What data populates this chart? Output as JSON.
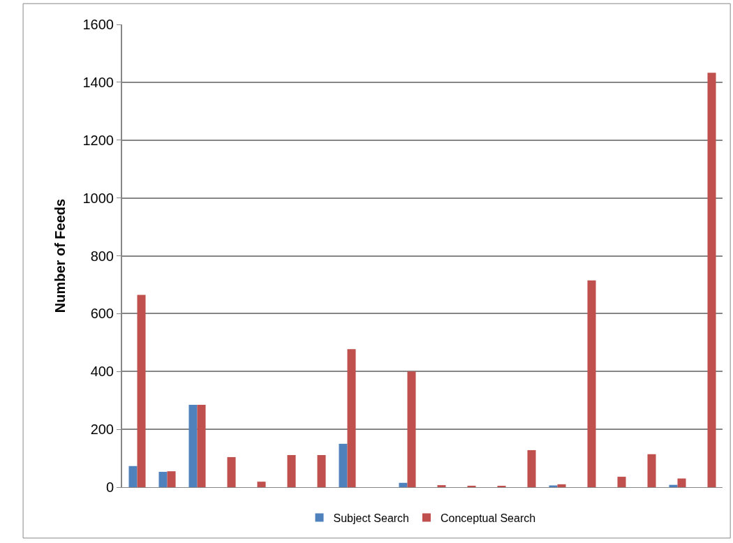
{
  "chart_data": {
    "type": "bar",
    "ylabel": "Number of Feeds",
    "categories": [
      null,
      null,
      null,
      null,
      null,
      null,
      null,
      null,
      null,
      null,
      null,
      null,
      null,
      null,
      null,
      null,
      null,
      null,
      null,
      null
    ],
    "series": [
      {
        "name": "Subject Search",
        "color": "#4f81bd",
        "values": [
          73,
          53,
          285,
          0,
          null,
          null,
          0,
          150,
          0,
          15,
          null,
          0,
          0,
          0,
          6,
          0,
          0,
          0,
          8,
          0
        ]
      },
      {
        "name": "Conceptual Search",
        "color": "#c0504d",
        "values": [
          665,
          55,
          285,
          104,
          19,
          111,
          111,
          477,
          null,
          400,
          7,
          5,
          4,
          128,
          10,
          715,
          36,
          114,
          30,
          1433
        ]
      }
    ],
    "ylim": [
      0,
      1600
    ],
    "yticks": [
      0,
      200,
      400,
      600,
      800,
      1000,
      1200,
      1400,
      1600
    ],
    "grid": "y",
    "legend": "bottom"
  }
}
